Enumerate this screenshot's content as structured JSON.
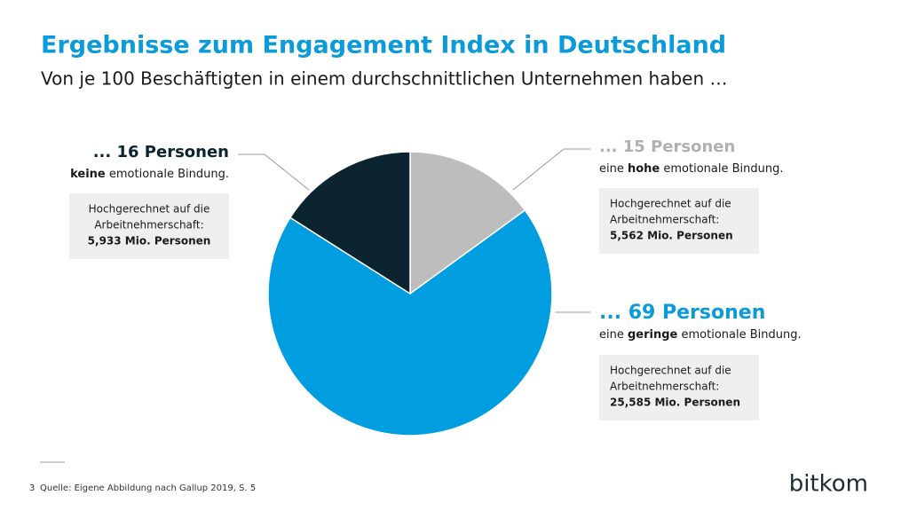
{
  "chart_data": {
    "type": "pie",
    "title": "Ergebnisse zum Engagement Index in Deutschland",
    "subtitle": "Von je 100 Beschäftigten in einem durchschnittlichen Unternehmen haben …",
    "categories": [
      "hohe emotionale Bindung",
      "geringe emotionale Bindung",
      "keine emotionale Bindung"
    ],
    "values": [
      15,
      69,
      16
    ],
    "value_labels": [
      "... 15 Personen",
      "... 69 Personen",
      "... 16 Personen"
    ],
    "colors": [
      "#bdbdbd",
      "#009ee0",
      "#0b2430"
    ],
    "descriptions": [
      {
        "pre": "eine ",
        "bold": "hohe",
        "post": " emotionale Bindung."
      },
      {
        "pre": "eine ",
        "bold": "geringe",
        "post": " emotionale Bindung."
      },
      {
        "bold": "keine",
        "post": " emotionale Bindung."
      }
    ],
    "boxes": [
      {
        "note": [
          "Hochgerechnet auf die",
          "Arbeitnehmerschaft:"
        ],
        "total": "5,562 Mio. Personen"
      },
      {
        "note": [
          "Hochgerechnet auf die",
          "Arbeitnehmerschaft:"
        ],
        "total": "25,585 Mio. Personen"
      },
      {
        "note": [
          "Hochgerechnet auf die",
          "Arbeitnehmerschaft:"
        ],
        "total": "5,933 Mio. Personen"
      }
    ]
  },
  "footer": {
    "page": "3",
    "source": "Quelle: Eigene Abbildung nach Gallup 2019, S. 5",
    "logo": "bitkom"
  }
}
